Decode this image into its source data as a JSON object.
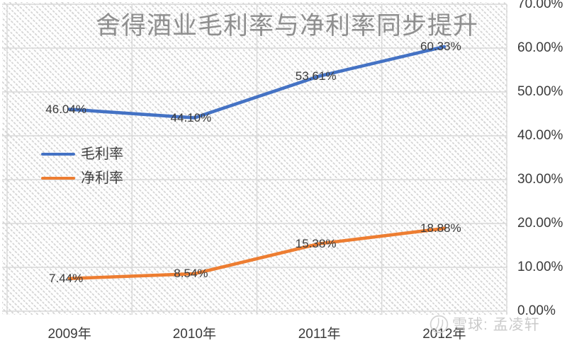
{
  "title": "舍得酒业毛利率与净利率同步提升",
  "watermark": {
    "logo": "xueqiu-snowball-icon",
    "brand_text": "雪球: 孟凌轩"
  },
  "colors": {
    "series_blue": "#4472C4",
    "series_orange": "#ED7D31",
    "gridline": "#d8d8d8",
    "title_text": "#8f8f8f",
    "label_text": "#3b3b3b",
    "watermark_text": "#c7c7c7"
  },
  "chart_data": {
    "type": "line",
    "title": "舍得酒业毛利率与净利率同步提升",
    "categories": [
      "2009年",
      "2010年",
      "2011年",
      "2012年"
    ],
    "series": [
      {
        "name": "毛利率",
        "color": "#4472C4",
        "values": [
          46.04,
          44.1,
          53.61,
          60.33
        ]
      },
      {
        "name": "净利率",
        "color": "#ED7D31",
        "values": [
          7.44,
          8.54,
          15.38,
          18.88
        ]
      }
    ],
    "data_labels": {
      "series_0": [
        "46.04%",
        "44.10%",
        "53.61%",
        "60.33%"
      ],
      "series_1": [
        "7.44%",
        "8.54%",
        "15.38%",
        "18.88%"
      ]
    },
    "y_axis": {
      "side": "right",
      "min": 0,
      "max": 70,
      "step": 10,
      "tick_labels": [
        "0.00%",
        "10.00%",
        "20.00%",
        "30.00%",
        "40.00%",
        "50.00%",
        "60.00%",
        "70.00%"
      ]
    },
    "x_axis": {
      "labels": [
        "2009年",
        "2010年",
        "2011年",
        "2012年"
      ]
    },
    "gridlines": {
      "horizontal": true,
      "vertical": true
    },
    "legend_position": "middle-left"
  }
}
